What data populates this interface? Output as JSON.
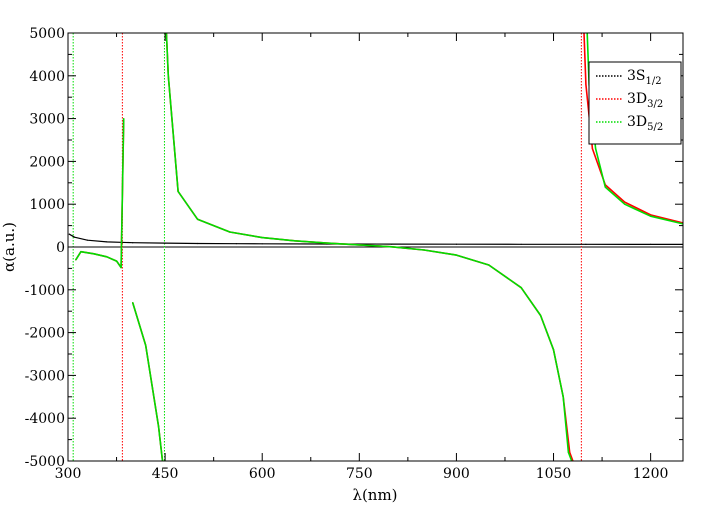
{
  "chart_data": {
    "type": "line",
    "title": "",
    "xlabel": "λ(nm)",
    "ylabel": "α(a.u.)",
    "xlim": [
      300,
      1250
    ],
    "ylim": [
      -5000,
      5000
    ],
    "x_ticks": [
      300,
      450,
      600,
      750,
      900,
      1050,
      1200
    ],
    "x_tick_labels": [
      "300",
      "450",
      "600",
      "750",
      "900",
      "1050",
      "1200"
    ],
    "y_ticks": [
      -5000,
      -4000,
      -3000,
      -2000,
      -1000,
      0,
      1000,
      2000,
      3000,
      4000,
      5000
    ],
    "y_tick_labels": [
      "-5000",
      "-4000",
      "-3000",
      "-2000",
      "-1000",
      "0",
      "1000",
      "2000",
      "3000",
      "4000",
      "5000"
    ],
    "grid": false,
    "legend_position": "top-right",
    "resonances_nm": [
      308,
      384,
      449,
      1093
    ],
    "series": [
      {
        "name": "3S1/2",
        "legend_main": "3S",
        "legend_sub": "1/2",
        "color": "#000000",
        "style": "dotted",
        "x": [
          302,
          310,
          330,
          360,
          400,
          450,
          500,
          560,
          600,
          700,
          800,
          900,
          1000,
          1100,
          1200,
          1250
        ],
        "y": [
          300,
          230,
          160,
          120,
          100,
          90,
          82,
          78,
          75,
          70,
          67,
          65,
          63,
          62,
          61,
          60
        ]
      },
      {
        "name": "3D3/2",
        "legend_main": "3D",
        "legend_sub": "3/2",
        "color": "#ff0000",
        "style": "dotted",
        "x": [
          312,
          320,
          340,
          360,
          375,
          382,
          386,
          400,
          420,
          440,
          446,
          452,
          455,
          470,
          500,
          550,
          600,
          650,
          700,
          750,
          800,
          850,
          900,
          950,
          1000,
          1030,
          1050,
          1065,
          1075,
          1080,
          1097,
          1100,
          1110,
          1130,
          1160,
          1200,
          1250
        ],
        "y": [
          -300,
          -110,
          -160,
          -230,
          -330,
          -480,
          3000,
          -1300,
          -2300,
          -4200,
          -5000,
          5000,
          4000,
          1300,
          650,
          350,
          220,
          145,
          90,
          50,
          5,
          -70,
          -190,
          -420,
          -950,
          -1600,
          -2400,
          -3500,
          -4800,
          -5000,
          5000,
          3800,
          2300,
          1450,
          1050,
          750,
          560
        ]
      },
      {
        "name": "3D5/2",
        "legend_main": "3D",
        "legend_sub": "5/2",
        "color": "#00dd00",
        "style": "dotted",
        "x": [
          312,
          320,
          340,
          360,
          375,
          382,
          386,
          400,
          420,
          440,
          446,
          452,
          455,
          470,
          500,
          550,
          600,
          650,
          700,
          750,
          800,
          850,
          900,
          950,
          1000,
          1030,
          1050,
          1065,
          1073,
          1078,
          1102,
          1105,
          1115,
          1130,
          1160,
          1200,
          1250
        ],
        "y": [
          -300,
          -110,
          -160,
          -230,
          -330,
          -480,
          3000,
          -1300,
          -2300,
          -4200,
          -5000,
          5000,
          4000,
          1300,
          650,
          350,
          220,
          145,
          90,
          50,
          5,
          -70,
          -190,
          -420,
          -950,
          -1600,
          -2400,
          -3500,
          -4800,
          -5000,
          5000,
          3800,
          2300,
          1400,
          1000,
          720,
          540
        ]
      }
    ]
  }
}
